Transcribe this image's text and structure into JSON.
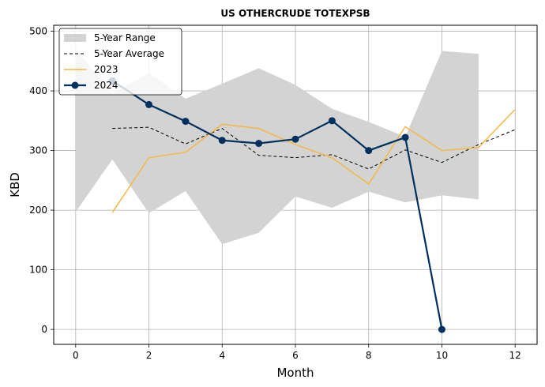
{
  "chart_data": {
    "type": "line",
    "title": "US OTHERCRUDE TOTEXPSB",
    "xlabel": "Month",
    "ylabel": "KBD",
    "xlim": [
      -0.6,
      12.6
    ],
    "ylim": [
      -25,
      510
    ],
    "xticks": [
      0,
      2,
      4,
      6,
      8,
      10,
      12
    ],
    "yticks": [
      0,
      100,
      200,
      300,
      400,
      500
    ],
    "grid": true,
    "legend_position": "top-left",
    "range": {
      "name": "5-Year Range",
      "color": "#d3d3d3",
      "x": [
        0,
        1,
        2,
        3,
        4,
        5,
        6,
        7,
        8,
        9,
        10,
        11
      ],
      "upper": [
        470,
        395,
        430,
        387,
        412,
        438,
        410,
        370,
        348,
        323,
        467,
        462
      ],
      "lower": [
        197,
        285,
        195,
        232,
        143,
        162,
        223,
        204,
        231,
        213,
        225,
        218
      ]
    },
    "series": [
      {
        "name": "5-Year Average",
        "color": "#000000",
        "style": "dashed",
        "x": [
          1,
          2,
          3,
          4,
          5,
          6,
          7,
          8,
          9,
          10,
          11,
          12
        ],
        "values": [
          337,
          339,
          311,
          337,
          292,
          288,
          293,
          269,
          301,
          280,
          310,
          335
        ]
      },
      {
        "name": "2023",
        "color": "#f5b843",
        "style": "solid",
        "x": [
          1,
          2,
          3,
          4,
          5,
          6,
          7,
          8,
          9,
          10,
          11,
          12
        ],
        "values": [
          196,
          288,
          297,
          344,
          337,
          310,
          288,
          244,
          340,
          300,
          305,
          369
        ]
      },
      {
        "name": "2024",
        "color": "#00305e",
        "style": "solid-markers",
        "x": [
          1,
          2,
          3,
          4,
          5,
          6,
          7,
          8,
          9,
          10
        ],
        "values": [
          417,
          377,
          349,
          317,
          312,
          319,
          350,
          300,
          322,
          0
        ]
      }
    ]
  }
}
